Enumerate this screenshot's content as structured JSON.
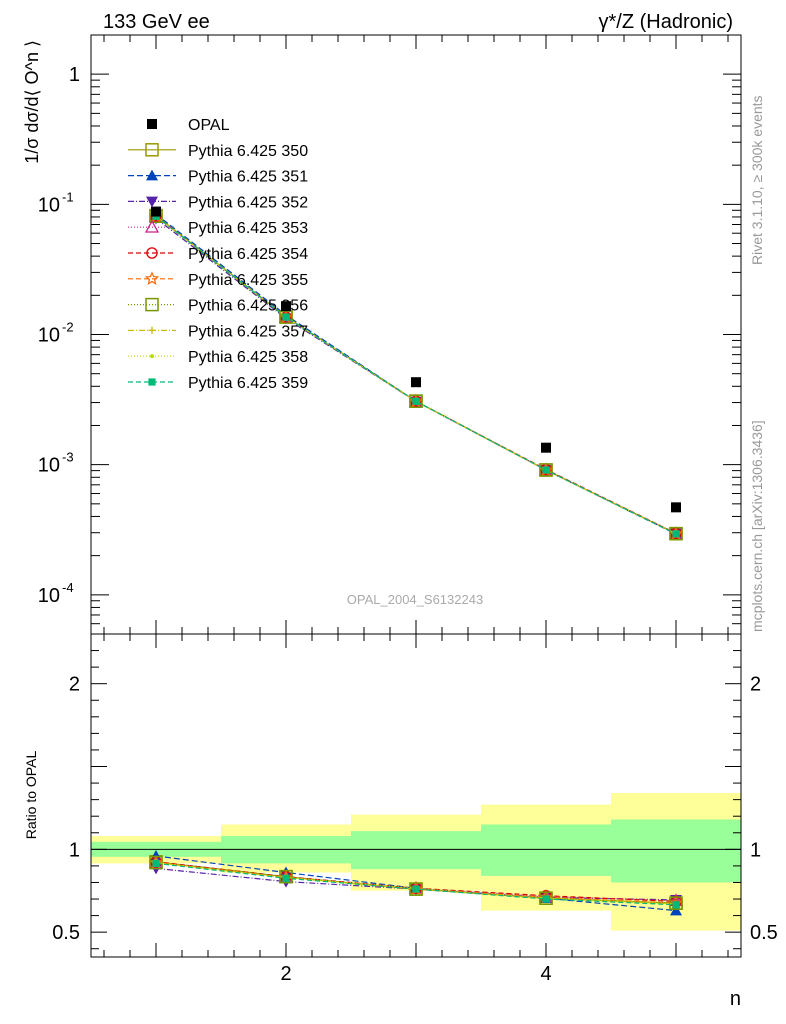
{
  "header": {
    "left_title": "133 GeV ee",
    "right_title": "γ*/Z (Hadronic)"
  },
  "side_labels": {
    "rivet": "Rivet 3.1.10, ≥ 300k events",
    "mcplots": "mcplots.cern.ch [arXiv:1306.3436]"
  },
  "analysis_label": "OPAL_2004_S6132243",
  "chart_data": [
    {
      "type": "scatter",
      "panel": "main",
      "ylabel": "1/σ dσ/d⟨ O^n ⟩",
      "yscale": "log",
      "ylim": [
        5e-05,
        2
      ],
      "xlim": [
        0.5,
        5.5
      ],
      "y_ticks": [
        {
          "value": 1,
          "label": "1"
        },
        {
          "value": 0.1,
          "label": "10^-1"
        },
        {
          "value": 0.01,
          "label": "10^-2"
        },
        {
          "value": 0.001,
          "label": "10^-3"
        },
        {
          "value": 0.0001,
          "label": "10^-4"
        }
      ],
      "x": [
        1,
        2,
        3,
        4,
        5
      ],
      "data_series": {
        "name": "OPAL",
        "values": [
          0.088,
          0.0165,
          0.0043,
          0.00135,
          0.00047
        ],
        "color": "#000000",
        "marker": "filled-square"
      },
      "series": [
        {
          "name": "Pythia 6.425 350",
          "color": "#999900",
          "dash": "solid",
          "marker": "open-square",
          "values": [
            0.082,
            0.0137,
            0.00308,
            0.00091,
            0.000295
          ]
        },
        {
          "name": "Pythia 6.425 351",
          "color": "#0044bb",
          "dash": "6,3",
          "marker": "filled-triangle",
          "values": [
            0.084,
            0.0141,
            0.00307,
            0.00091,
            0.000292
          ]
        },
        {
          "name": "Pythia 6.425 352",
          "color": "#5522aa",
          "dash": "6,2,1,2",
          "marker": "filled-triangle-down",
          "values": [
            0.078,
            0.0133,
            0.00306,
            0.00091,
            0.000296
          ]
        },
        {
          "name": "Pythia 6.425 353",
          "color": "#cc2288",
          "dash": "1,2",
          "marker": "open-triangle",
          "values": [
            0.081,
            0.0136,
            0.00307,
            0.00091,
            0.000295
          ]
        },
        {
          "name": "Pythia 6.425 354",
          "color": "#dd0000",
          "dash": "5,3",
          "marker": "open-circle",
          "values": [
            0.081,
            0.0136,
            0.00307,
            0.00092,
            0.000297
          ]
        },
        {
          "name": "Pythia 6.425 355",
          "color": "#ff6600",
          "dash": "5,3",
          "marker": "open-star",
          "values": [
            0.081,
            0.0136,
            0.00307,
            0.00091,
            0.000295
          ]
        },
        {
          "name": "Pythia 6.425 356",
          "color": "#779900",
          "dash": "1,2",
          "marker": "open-square",
          "values": [
            0.081,
            0.0136,
            0.00307,
            0.00091,
            0.000295
          ]
        },
        {
          "name": "Pythia 6.425 357",
          "color": "#ccbb00",
          "dash": "6,2,1,2",
          "marker": "small-cross",
          "values": [
            0.081,
            0.0136,
            0.00307,
            0.00091,
            0.000295
          ]
        },
        {
          "name": "Pythia 6.425 358",
          "color": "#bbdd00",
          "dash": "1,2",
          "marker": "small-dot",
          "values": [
            0.081,
            0.0136,
            0.00307,
            0.00091,
            0.000295
          ]
        },
        {
          "name": "Pythia 6.425 359",
          "color": "#00bb77",
          "dash": "5,3",
          "marker": "filled-square-small",
          "values": [
            0.081,
            0.0136,
            0.00307,
            0.00091,
            0.000294
          ]
        }
      ],
      "legend_position": "upper-left"
    },
    {
      "type": "line",
      "panel": "ratio",
      "ylabel": "Ratio to OPAL",
      "xlabel": "n",
      "ylim": [
        0.35,
        2.3
      ],
      "xlim": [
        0.5,
        5.5
      ],
      "y_ticks": [
        {
          "value": 0.5,
          "label": "0.5"
        },
        {
          "value": 1,
          "label": "1"
        },
        {
          "value": 2,
          "label": "2"
        }
      ],
      "x_ticks": [
        {
          "value": 2,
          "label": "2"
        },
        {
          "value": 4,
          "label": "4"
        }
      ],
      "bands": {
        "bin_edges": [
          0.5,
          1.5,
          2.5,
          3.5,
          4.5,
          5.5
        ],
        "yellow_low": [
          0.915,
          0.86,
          0.75,
          0.63,
          0.51
        ],
        "yellow_high": [
          1.08,
          1.15,
          1.21,
          1.27,
          1.34
        ],
        "green_low": [
          0.955,
          0.915,
          0.88,
          0.84,
          0.8
        ],
        "green_high": [
          1.045,
          1.08,
          1.11,
          1.15,
          1.18
        ],
        "yellow_color": "#ffff99",
        "green_color": "#99ff99"
      },
      "x": [
        1,
        2,
        3,
        4,
        5
      ],
      "series": [
        {
          "name": "Pythia 6.425 350",
          "values": [
            0.925,
            0.835,
            0.76,
            0.705,
            0.675
          ]
        },
        {
          "name": "Pythia 6.425 351",
          "values": [
            0.96,
            0.86,
            0.765,
            0.705,
            0.63
          ]
        },
        {
          "name": "Pythia 6.425 352",
          "values": [
            0.885,
            0.805,
            0.76,
            0.71,
            0.695
          ]
        },
        {
          "name": "Pythia 6.425 353",
          "values": [
            0.92,
            0.83,
            0.765,
            0.715,
            0.69
          ]
        },
        {
          "name": "Pythia 6.425 354",
          "values": [
            0.925,
            0.835,
            0.765,
            0.72,
            0.685
          ]
        },
        {
          "name": "Pythia 6.425 355",
          "values": [
            0.92,
            0.83,
            0.76,
            0.71,
            0.675
          ]
        },
        {
          "name": "Pythia 6.425 356",
          "values": [
            0.92,
            0.835,
            0.76,
            0.705,
            0.675
          ]
        },
        {
          "name": "Pythia 6.425 357",
          "values": [
            0.92,
            0.83,
            0.76,
            0.705,
            0.67
          ]
        },
        {
          "name": "Pythia 6.425 358",
          "values": [
            0.92,
            0.83,
            0.765,
            0.705,
            0.67
          ]
        },
        {
          "name": "Pythia 6.425 359",
          "values": [
            0.915,
            0.825,
            0.76,
            0.7,
            0.665
          ]
        }
      ]
    }
  ]
}
